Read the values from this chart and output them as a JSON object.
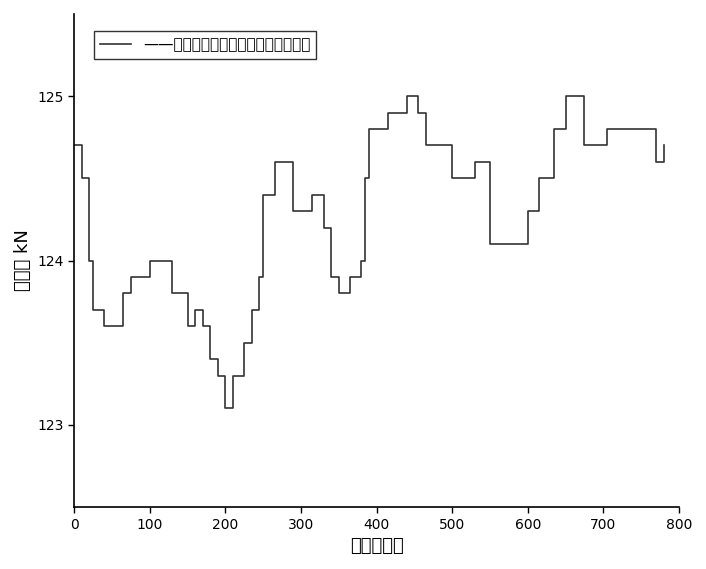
{
  "title": "",
  "xlabel": "数据采集点",
  "ylabel": "弯辊力 kN",
  "legend_label": "——中间辊弯辊闭环反馈控制的控制量",
  "xlim": [
    0,
    800
  ],
  "ylim": [
    122.5,
    125.5
  ],
  "yticks": [
    123,
    124,
    125
  ],
  "xticks": [
    0,
    100,
    200,
    300,
    400,
    500,
    600,
    700,
    800
  ],
  "line_color": "#333333",
  "line_width": 1.2,
  "background_color": "#ffffff",
  "data_x": [
    0,
    5,
    10,
    15,
    20,
    25,
    30,
    35,
    40,
    45,
    50,
    55,
    60,
    65,
    70,
    75,
    80,
    85,
    90,
    95,
    100,
    105,
    110,
    115,
    120,
    125,
    130,
    135,
    140,
    145,
    150,
    155,
    160,
    165,
    170,
    175,
    180,
    185,
    190,
    195,
    200,
    205,
    210,
    215,
    220,
    225,
    230,
    235,
    240,
    245,
    250,
    255,
    260,
    265,
    270,
    275,
    280,
    285,
    290,
    295,
    300,
    305,
    310,
    315,
    320,
    325,
    330,
    335,
    340,
    345,
    350,
    355,
    360,
    365,
    370,
    375,
    380,
    385,
    390,
    395,
    400,
    405,
    410,
    415,
    420,
    425,
    430,
    435,
    440,
    445,
    450,
    455,
    460,
    465,
    470,
    475,
    480,
    485,
    490,
    495,
    500,
    505,
    510,
    515,
    520,
    525,
    530,
    535,
    540,
    545,
    550,
    555,
    560,
    565,
    570,
    575,
    580,
    585,
    590,
    595,
    600,
    605,
    610,
    615,
    620,
    625,
    630,
    635,
    640,
    645,
    650,
    655,
    660,
    665,
    670,
    675,
    680,
    685,
    690,
    695,
    700,
    705,
    710,
    715,
    720,
    725,
    730,
    735,
    740,
    745,
    750,
    755,
    760,
    765,
    770,
    775,
    780
  ],
  "data_y": [
    124.7,
    124.7,
    124.5,
    124.5,
    124.0,
    123.7,
    123.7,
    123.7,
    123.6,
    123.6,
    123.6,
    123.6,
    123.6,
    123.8,
    123.8,
    123.9,
    123.9,
    123.9,
    123.9,
    123.9,
    124.0,
    124.0,
    124.0,
    124.0,
    124.0,
    124.0,
    123.8,
    123.8,
    123.8,
    123.8,
    123.6,
    123.6,
    123.7,
    123.7,
    123.6,
    123.6,
    123.4,
    123.4,
    123.3,
    123.3,
    123.1,
    123.1,
    123.3,
    123.3,
    123.3,
    123.5,
    123.5,
    123.7,
    123.7,
    123.9,
    124.4,
    124.4,
    124.4,
    124.6,
    124.6,
    124.6,
    124.6,
    124.6,
    124.3,
    124.3,
    124.3,
    124.3,
    124.3,
    124.4,
    124.4,
    124.4,
    124.2,
    124.2,
    123.9,
    123.9,
    123.8,
    123.8,
    123.8,
    123.9,
    123.9,
    123.9,
    124.0,
    124.5,
    124.8,
    124.8,
    124.8,
    124.8,
    124.8,
    124.9,
    124.9,
    124.9,
    124.9,
    124.9,
    125.0,
    125.0,
    125.0,
    124.9,
    124.9,
    124.7,
    124.7,
    124.7,
    124.7,
    124.7,
    124.7,
    124.7,
    124.5,
    124.5,
    124.5,
    124.5,
    124.5,
    124.5,
    124.6,
    124.6,
    124.6,
    124.6,
    124.1,
    124.1,
    124.1,
    124.1,
    124.1,
    124.1,
    124.1,
    124.1,
    124.1,
    124.1,
    124.3,
    124.3,
    124.3,
    124.5,
    124.5,
    124.5,
    124.5,
    124.8,
    124.8,
    124.8,
    125.0,
    125.0,
    125.0,
    125.0,
    125.0,
    124.7,
    124.7,
    124.7,
    124.7,
    124.7,
    124.7,
    124.8,
    124.8,
    124.8,
    124.8,
    124.8,
    124.8,
    124.8,
    124.8,
    124.8,
    124.8,
    124.8,
    124.8,
    124.8,
    124.6,
    124.6,
    124.7
  ]
}
